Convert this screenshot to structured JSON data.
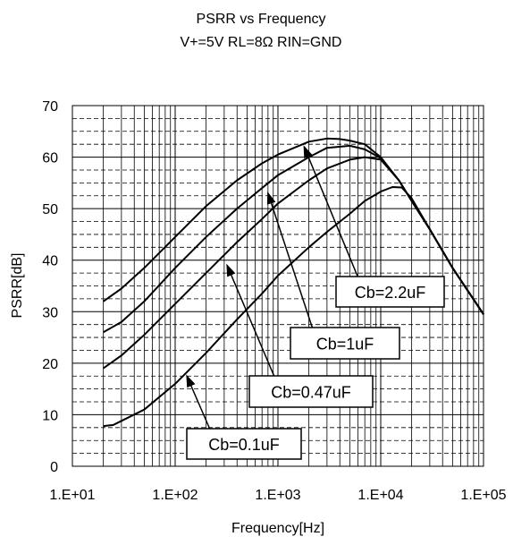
{
  "chart_data": {
    "type": "line",
    "title": "PSRR vs Frequency",
    "subtitle": "V+=5V RL=8Ω   RIN=GND",
    "xlabel": "Frequency[Hz]",
    "ylabel": "PSRR[dB]",
    "x_scale": "log",
    "xlim": [
      10,
      100000
    ],
    "ylim": [
      0,
      70
    ],
    "grid": true,
    "x_ticks": [
      "1.E+01",
      "1.E+02",
      "1.E+03",
      "1.E+04",
      "1.E+05"
    ],
    "y_ticks": [
      "0",
      "10",
      "20",
      "30",
      "40",
      "50",
      "60",
      "70"
    ],
    "series": [
      {
        "name": "Cb=2.2uF",
        "points": [
          [
            20,
            32
          ],
          [
            30,
            34.5
          ],
          [
            50,
            38.5
          ],
          [
            100,
            44.5
          ],
          [
            200,
            50.5
          ],
          [
            400,
            55.5
          ],
          [
            700,
            58.8
          ],
          [
            1000,
            60.5
          ],
          [
            2000,
            63
          ],
          [
            3000,
            63.6
          ],
          [
            4000,
            63.5
          ],
          [
            5000,
            63.2
          ],
          [
            7000,
            62.5
          ],
          [
            10000,
            60
          ],
          [
            15000,
            55.5
          ],
          [
            20000,
            51.5
          ],
          [
            30000,
            46
          ],
          [
            50000,
            38.5
          ],
          [
            100000,
            29.5
          ]
        ]
      },
      {
        "name": "Cb=1uF",
        "points": [
          [
            20,
            26
          ],
          [
            30,
            28
          ],
          [
            50,
            32
          ],
          [
            100,
            38.5
          ],
          [
            200,
            44.5
          ],
          [
            400,
            50
          ],
          [
            700,
            54
          ],
          [
            1000,
            56.5
          ],
          [
            2000,
            60
          ],
          [
            3000,
            61.8
          ],
          [
            5000,
            62.2
          ],
          [
            7000,
            61.5
          ],
          [
            10000,
            59.8
          ],
          [
            15000,
            55.5
          ],
          [
            20000,
            51.5
          ],
          [
            30000,
            46
          ],
          [
            50000,
            38.5
          ],
          [
            100000,
            29.5
          ]
        ]
      },
      {
        "name": "Cb=0.47uF",
        "points": [
          [
            20,
            19
          ],
          [
            30,
            21.5
          ],
          [
            50,
            25.5
          ],
          [
            100,
            31.5
          ],
          [
            200,
            37.5
          ],
          [
            400,
            43.5
          ],
          [
            700,
            48
          ],
          [
            1000,
            51
          ],
          [
            2000,
            55.5
          ],
          [
            3000,
            57.8
          ],
          [
            5000,
            59.5
          ],
          [
            7000,
            60
          ],
          [
            10000,
            59.5
          ],
          [
            15000,
            55.5
          ],
          [
            20000,
            51.5
          ],
          [
            30000,
            46
          ],
          [
            50000,
            38.5
          ],
          [
            100000,
            29.5
          ]
        ]
      },
      {
        "name": "Cb=0.1uF",
        "points": [
          [
            20,
            7.8
          ],
          [
            25,
            8
          ],
          [
            30,
            8.8
          ],
          [
            50,
            11
          ],
          [
            100,
            16
          ],
          [
            200,
            22
          ],
          [
            400,
            28.5
          ],
          [
            700,
            33.5
          ],
          [
            1000,
            37
          ],
          [
            2000,
            42.5
          ],
          [
            3000,
            45.5
          ],
          [
            5000,
            49
          ],
          [
            7000,
            51.5
          ],
          [
            10000,
            53.3
          ],
          [
            13000,
            54.2
          ],
          [
            16000,
            54.1
          ],
          [
            20000,
            52
          ],
          [
            30000,
            46
          ],
          [
            50000,
            38.5
          ],
          [
            100000,
            29.5
          ]
        ]
      }
    ],
    "annotations": [
      {
        "series": "Cb=2.2uF",
        "text": "Cb=2.2uF",
        "arrow_to": [
          1800,
          62
        ]
      },
      {
        "series": "Cb=1uF",
        "text": "Cb=1uF",
        "arrow_to": [
          800,
          53
        ]
      },
      {
        "series": "Cb=0.47uF",
        "text": "Cb=0.47uF",
        "arrow_to": [
          320,
          39
        ]
      },
      {
        "series": "Cb=0.1uF",
        "text": "Cb=0.1uF",
        "arrow_to": [
          130,
          17.5
        ]
      }
    ]
  }
}
